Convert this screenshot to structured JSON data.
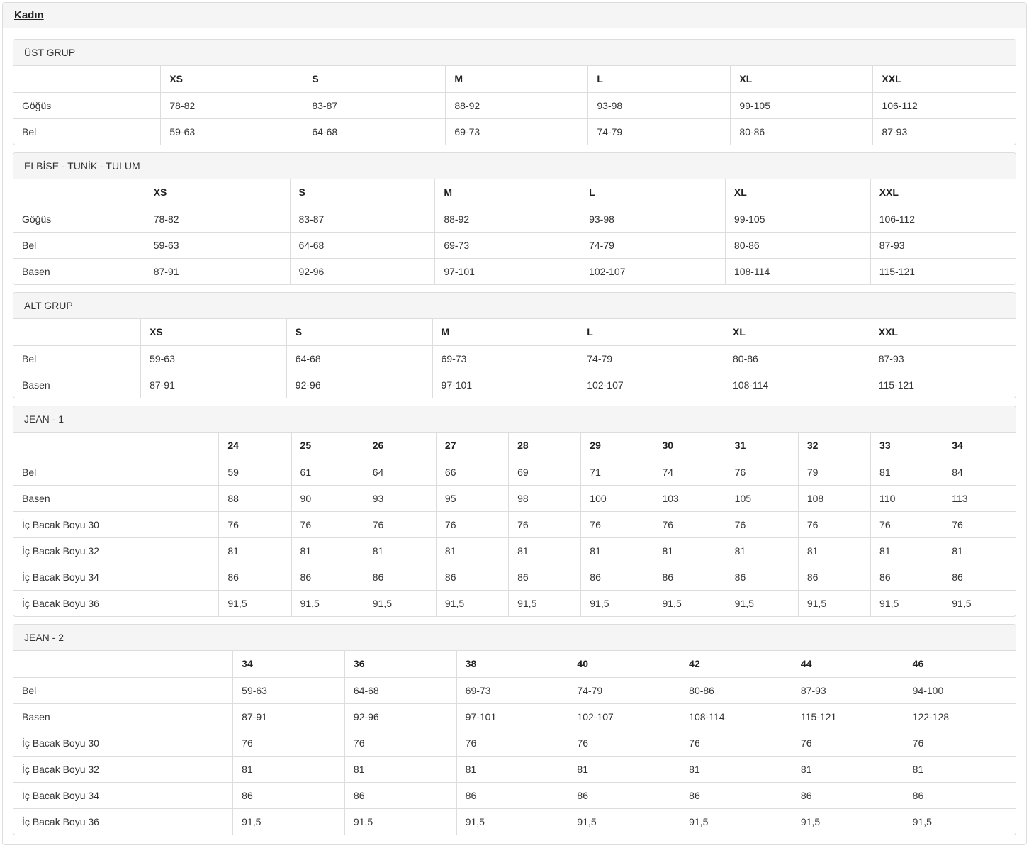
{
  "page": {
    "title": "Kadın"
  },
  "panels": [
    {
      "title": "ÜST GRUP",
      "columns": [
        "XS",
        "S",
        "M",
        "L",
        "XL",
        "XXL"
      ],
      "rows": [
        {
          "label": "Göğüs",
          "values": [
            "78-82",
            "83-87",
            "88-92",
            "93-98",
            "99-105",
            "106-112"
          ]
        },
        {
          "label": "Bel",
          "values": [
            "59-63",
            "64-68",
            "69-73",
            "74-79",
            "80-86",
            "87-93"
          ]
        }
      ]
    },
    {
      "title": "ELBİSE - TUNİK - TULUM",
      "columns": [
        "XS",
        "S",
        "M",
        "L",
        "XL",
        "XXL"
      ],
      "rows": [
        {
          "label": "Göğüs",
          "values": [
            "78-82",
            "83-87",
            "88-92",
            "93-98",
            "99-105",
            "106-112"
          ]
        },
        {
          "label": "Bel",
          "values": [
            "59-63",
            "64-68",
            "69-73",
            "74-79",
            "80-86",
            "87-93"
          ]
        },
        {
          "label": "Basen",
          "values": [
            "87-91",
            "92-96",
            "97-101",
            "102-107",
            "108-114",
            "115-121"
          ]
        }
      ]
    },
    {
      "title": "ALT GRUP",
      "columns": [
        "XS",
        "S",
        "M",
        "L",
        "XL",
        "XXL"
      ],
      "rows": [
        {
          "label": "Bel",
          "values": [
            "59-63",
            "64-68",
            "69-73",
            "74-79",
            "80-86",
            "87-93"
          ]
        },
        {
          "label": "Basen",
          "values": [
            "87-91",
            "92-96",
            "97-101",
            "102-107",
            "108-114",
            "115-121"
          ]
        }
      ]
    },
    {
      "title": "JEAN - 1",
      "columns": [
        "24",
        "25",
        "26",
        "27",
        "28",
        "29",
        "30",
        "31",
        "32",
        "33",
        "34"
      ],
      "rows": [
        {
          "label": "Bel",
          "values": [
            "59",
            "61",
            "64",
            "66",
            "69",
            "71",
            "74",
            "76",
            "79",
            "81",
            "84"
          ]
        },
        {
          "label": "Basen",
          "values": [
            "88",
            "90",
            "93",
            "95",
            "98",
            "100",
            "103",
            "105",
            "108",
            "110",
            "113"
          ]
        },
        {
          "label": "İç Bacak Boyu 30",
          "values": [
            "76",
            "76",
            "76",
            "76",
            "76",
            "76",
            "76",
            "76",
            "76",
            "76",
            "76"
          ]
        },
        {
          "label": "İç Bacak Boyu 32",
          "values": [
            "81",
            "81",
            "81",
            "81",
            "81",
            "81",
            "81",
            "81",
            "81",
            "81",
            "81"
          ]
        },
        {
          "label": "İç Bacak Boyu 34",
          "values": [
            "86",
            "86",
            "86",
            "86",
            "86",
            "86",
            "86",
            "86",
            "86",
            "86",
            "86"
          ]
        },
        {
          "label": "İç Bacak Boyu 36",
          "values": [
            "91,5",
            "91,5",
            "91,5",
            "91,5",
            "91,5",
            "91,5",
            "91,5",
            "91,5",
            "91,5",
            "91,5",
            "91,5"
          ]
        }
      ]
    },
    {
      "title": "JEAN - 2",
      "columns": [
        "34",
        "36",
        "38",
        "40",
        "42",
        "44",
        "46"
      ],
      "rows": [
        {
          "label": "Bel",
          "values": [
            "59-63",
            "64-68",
            "69-73",
            "74-79",
            "80-86",
            "87-93",
            "94-100"
          ]
        },
        {
          "label": "Basen",
          "values": [
            "87-91",
            "92-96",
            "97-101",
            "102-107",
            "108-114",
            "115-121",
            "122-128"
          ]
        },
        {
          "label": "İç Bacak Boyu 30",
          "values": [
            "76",
            "76",
            "76",
            "76",
            "76",
            "76",
            "76"
          ]
        },
        {
          "label": "İç Bacak Boyu 32",
          "values": [
            "81",
            "81",
            "81",
            "81",
            "81",
            "81",
            "81"
          ]
        },
        {
          "label": "İç Bacak Boyu 34",
          "values": [
            "86",
            "86",
            "86",
            "86",
            "86",
            "86",
            "86"
          ]
        },
        {
          "label": "İç Bacak Boyu 36",
          "values": [
            "91,5",
            "91,5",
            "91,5",
            "91,5",
            "91,5",
            "91,5",
            "91,5"
          ]
        }
      ]
    }
  ]
}
